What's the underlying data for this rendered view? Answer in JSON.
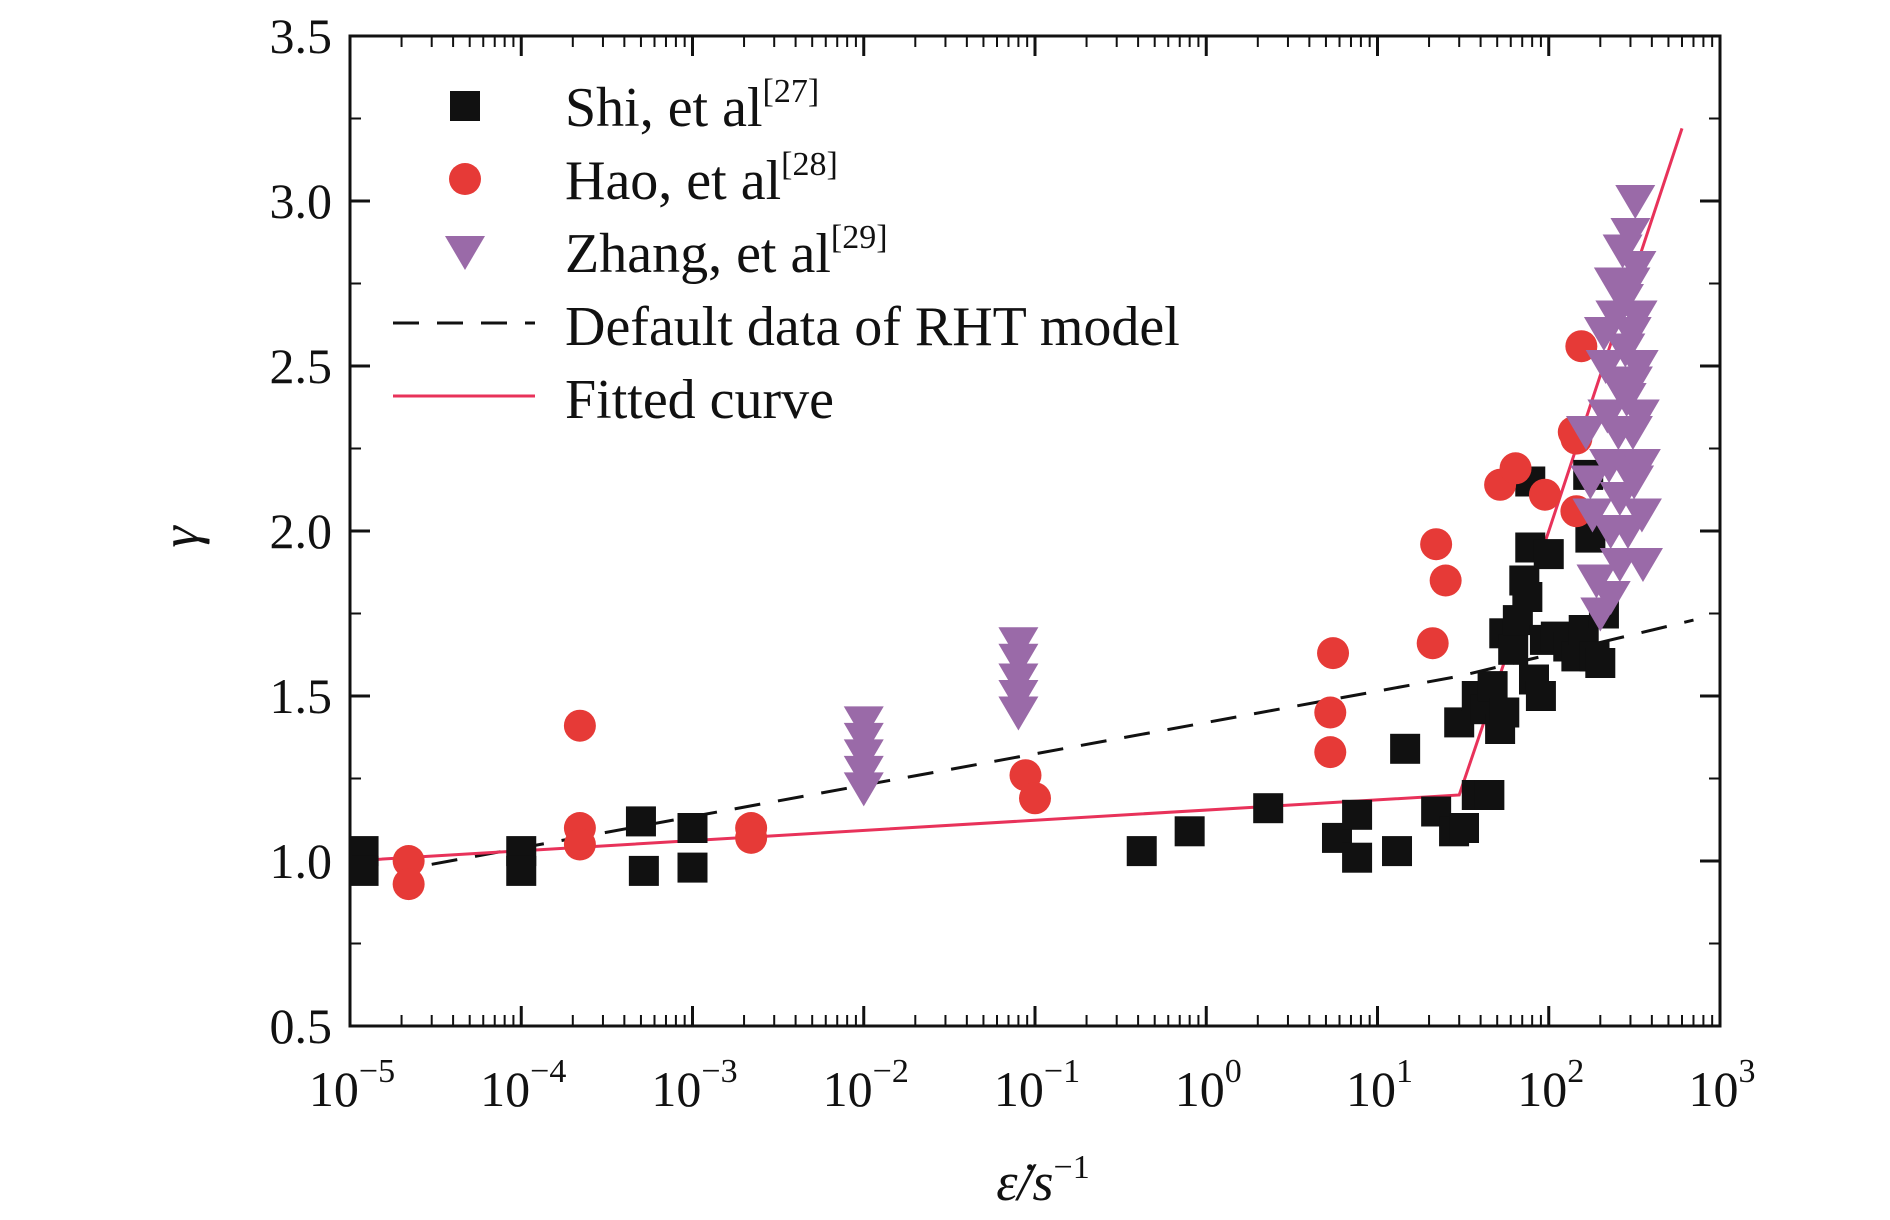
{
  "chart_data": {
    "type": "scatter",
    "x_scale": "log",
    "xlim": [
      1e-05,
      1000
    ],
    "ylim": [
      0.5,
      3.5
    ],
    "grid": false,
    "legend_placement": "top-left",
    "xlabel": {
      "base": "ε̇/s",
      "sup": "−1"
    },
    "ylabel": "γ",
    "x_ticks": [
      {
        "value": 1e-05,
        "base": "10",
        "exp": "−5"
      },
      {
        "value": 0.0001,
        "base": "10",
        "exp": "−4"
      },
      {
        "value": 0.001,
        "base": "10",
        "exp": "−3"
      },
      {
        "value": 0.01,
        "base": "10",
        "exp": "−2"
      },
      {
        "value": 0.1,
        "base": "10",
        "exp": "−1"
      },
      {
        "value": 1,
        "base": "10",
        "exp": "0"
      },
      {
        "value": 10,
        "base": "10",
        "exp": "1"
      },
      {
        "value": 100,
        "base": "10",
        "exp": "2"
      },
      {
        "value": 1000,
        "base": "10",
        "exp": "3"
      }
    ],
    "y_ticks": [
      {
        "value": 0.5,
        "label": "0.5"
      },
      {
        "value": 1.0,
        "label": "1.0"
      },
      {
        "value": 1.5,
        "label": "1.5"
      },
      {
        "value": 2.0,
        "label": "2.0"
      },
      {
        "value": 2.5,
        "label": "2.5"
      },
      {
        "value": 3.0,
        "label": "3.0"
      },
      {
        "value": 3.5,
        "label": "3.5"
      }
    ],
    "series": [
      {
        "name": "Shi, et al",
        "ref": "[27]",
        "marker": "square",
        "color": "#111111",
        "points": [
          [
            1.2e-05,
            1.03
          ],
          [
            1.2e-05,
            0.97
          ],
          [
            0.0001,
            1.03
          ],
          [
            0.0001,
            0.97
          ],
          [
            0.0005,
            1.12
          ],
          [
            0.00052,
            0.97
          ],
          [
            0.001,
            1.1
          ],
          [
            0.001,
            0.98
          ],
          [
            0.42,
            1.03
          ],
          [
            0.8,
            1.09
          ],
          [
            2.3,
            1.16
          ],
          [
            5.8,
            1.07
          ],
          [
            7.6,
            1.01
          ],
          [
            7.6,
            1.14
          ],
          [
            13,
            1.03
          ],
          [
            14.5,
            1.34
          ],
          [
            22,
            1.15
          ],
          [
            28,
            1.09
          ],
          [
            32,
            1.1
          ],
          [
            30,
            1.42
          ],
          [
            38,
            1.2
          ],
          [
            45,
            1.2
          ],
          [
            38,
            1.5
          ],
          [
            43,
            1.46
          ],
          [
            47,
            1.53
          ],
          [
            52,
            1.4
          ],
          [
            55,
            1.45
          ],
          [
            55,
            1.69
          ],
          [
            62,
            1.64
          ],
          [
            66,
            1.73
          ],
          [
            72,
            1.85
          ],
          [
            75,
            1.8
          ],
          [
            78,
            1.95
          ],
          [
            78,
            2.15
          ],
          [
            82,
            1.55
          ],
          [
            90,
            1.5
          ],
          [
            95,
            1.67
          ],
          [
            100,
            1.93
          ],
          [
            110,
            1.68
          ],
          [
            130,
            1.65
          ],
          [
            145,
            1.62
          ],
          [
            160,
            1.7
          ],
          [
            170,
            2.17
          ],
          [
            175,
            1.98
          ],
          [
            185,
            1.62
          ],
          [
            200,
            1.6
          ],
          [
            210,
            1.75
          ]
        ]
      },
      {
        "name": "Hao, et al",
        "ref": "[28]",
        "marker": "circle",
        "color": "#e63a37",
        "points": [
          [
            2.2e-05,
            1.0
          ],
          [
            2.2e-05,
            0.93
          ],
          [
            0.00022,
            1.41
          ],
          [
            0.00022,
            1.1
          ],
          [
            0.00022,
            1.05
          ],
          [
            0.0022,
            1.1
          ],
          [
            0.0022,
            1.07
          ],
          [
            0.088,
            1.26
          ],
          [
            0.1,
            1.19
          ],
          [
            5.5,
            1.63
          ],
          [
            5.3,
            1.45
          ],
          [
            5.3,
            1.33
          ],
          [
            22,
            1.96
          ],
          [
            21,
            1.66
          ],
          [
            25,
            1.85
          ],
          [
            52,
            2.14
          ],
          [
            64,
            2.19
          ],
          [
            95,
            2.11
          ],
          [
            140,
            2.3
          ],
          [
            145,
            2.28
          ],
          [
            145,
            2.06
          ],
          [
            155,
            2.56
          ]
        ]
      },
      {
        "name": "Zhang, et al",
        "ref": "[29]",
        "marker": "triangle-down",
        "color": "#9a6aa8",
        "points": [
          [
            0.01,
            1.42
          ],
          [
            0.01,
            1.37
          ],
          [
            0.01,
            1.32
          ],
          [
            0.01,
            1.27
          ],
          [
            0.01,
            1.22
          ],
          [
            0.08,
            1.66
          ],
          [
            0.08,
            1.61
          ],
          [
            0.08,
            1.55
          ],
          [
            0.08,
            1.5
          ],
          [
            0.08,
            1.45
          ],
          [
            165,
            2.3
          ],
          [
            175,
            2.15
          ],
          [
            180,
            2.05
          ],
          [
            190,
            1.85
          ],
          [
            200,
            1.75
          ],
          [
            210,
            2.6
          ],
          [
            215,
            2.5
          ],
          [
            220,
            2.35
          ],
          [
            225,
            2.2
          ],
          [
            230,
            2.0
          ],
          [
            230,
            1.8
          ],
          [
            240,
            2.75
          ],
          [
            245,
            2.65
          ],
          [
            250,
            2.45
          ],
          [
            255,
            2.3
          ],
          [
            260,
            2.1
          ],
          [
            260,
            1.9
          ],
          [
            270,
            2.85
          ],
          [
            275,
            2.7
          ],
          [
            280,
            2.55
          ],
          [
            285,
            2.4
          ],
          [
            290,
            2.2
          ],
          [
            290,
            2.0
          ],
          [
            300,
            2.9
          ],
          [
            300,
            2.75
          ],
          [
            305,
            2.6
          ],
          [
            310,
            2.45
          ],
          [
            310,
            2.3
          ],
          [
            315,
            2.15
          ],
          [
            320,
            3.0
          ],
          [
            325,
            2.8
          ],
          [
            330,
            2.65
          ],
          [
            335,
            2.5
          ],
          [
            340,
            2.35
          ],
          [
            345,
            2.2
          ],
          [
            350,
            2.05
          ],
          [
            355,
            1.9
          ]
        ]
      },
      {
        "name": "Default data of RHT model",
        "marker": "line",
        "dash": true,
        "color": "#111111",
        "points": [
          [
            3e-05,
            0.99
          ],
          [
            30,
            1.56
          ],
          [
            700,
            1.73
          ]
        ]
      },
      {
        "name": "Fitted curve",
        "marker": "line",
        "dash": false,
        "color": "#e8325a",
        "points": [
          [
            1e-05,
            1.0
          ],
          [
            30,
            1.2
          ],
          [
            100,
            2.0
          ],
          [
            600,
            3.22
          ]
        ]
      }
    ]
  }
}
